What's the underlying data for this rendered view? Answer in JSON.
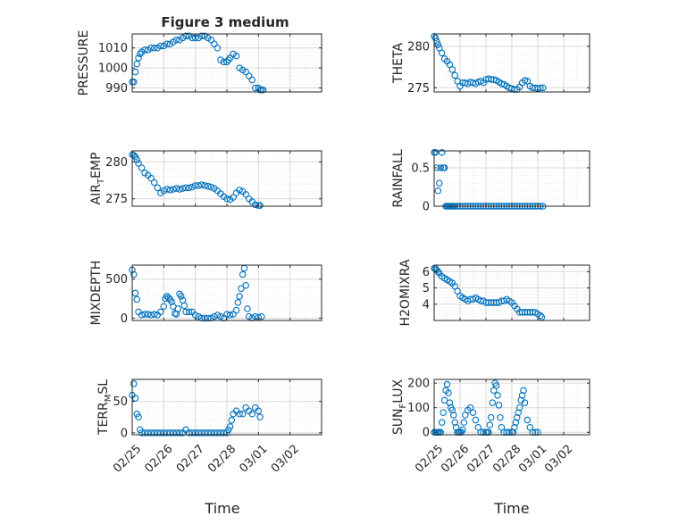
{
  "figure_title": "Figure 3 medium",
  "colors": {
    "marker": "#0072bd",
    "grid": "#d9d9d9",
    "axis": "#262626"
  },
  "chart_data": [
    {
      "type": "scatter",
      "id": "pressure",
      "ylabel": "PRESSURE",
      "ylim": [
        988,
        1017
      ],
      "yticks": [
        990,
        1000,
        1010
      ],
      "ytick_labels": [
        "990",
        "1000",
        "1010"
      ],
      "xlim": [
        0,
        6
      ],
      "show_xticklabels": false,
      "grid": true,
      "x": [
        0,
        0.05,
        0.1,
        0.15,
        0.2,
        0.25,
        0.3,
        0.4,
        0.5,
        0.6,
        0.7,
        0.8,
        0.9,
        1.0,
        1.1,
        1.2,
        1.3,
        1.4,
        1.5,
        1.6,
        1.7,
        1.8,
        1.9,
        2.0,
        2.1,
        2.2,
        2.3,
        2.4,
        2.5,
        2.6,
        2.7,
        2.8,
        2.9,
        3.0,
        3.05,
        3.1,
        3.2,
        3.3,
        3.4,
        3.5,
        3.6,
        3.7,
        3.8,
        3.9,
        4.0,
        4.05,
        4.1,
        4.15
      ],
      "y": [
        993,
        993,
        998,
        1002,
        1005,
        1007,
        1008,
        1009,
        1009,
        1010,
        1010,
        1010,
        1011,
        1011,
        1012,
        1012,
        1013,
        1014,
        1014,
        1015,
        1016,
        1016,
        1015,
        1015,
        1015,
        1016,
        1016,
        1015,
        1014,
        1012,
        1010,
        1004,
        1003,
        1003,
        1004,
        1005,
        1007,
        1006,
        1000,
        999,
        998,
        996,
        994,
        990,
        990,
        989,
        989,
        989
      ]
    },
    {
      "type": "scatter",
      "id": "theta",
      "ylabel": "THETA",
      "ylim": [
        274.5,
        281.5
      ],
      "yticks": [
        275,
        280
      ],
      "ytick_labels": [
        "275",
        "280"
      ],
      "xlim": [
        0,
        6
      ],
      "show_xticklabels": false,
      "grid": true,
      "x": [
        0,
        0.05,
        0.1,
        0.15,
        0.2,
        0.3,
        0.4,
        0.5,
        0.6,
        0.7,
        0.8,
        0.9,
        1.0,
        1.1,
        1.2,
        1.3,
        1.4,
        1.5,
        1.6,
        1.7,
        1.8,
        1.9,
        2.0,
        2.1,
        2.2,
        2.3,
        2.4,
        2.5,
        2.6,
        2.7,
        2.8,
        2.9,
        3.0,
        3.1,
        3.2,
        3.3,
        3.4,
        3.5,
        3.6,
        3.7,
        3.8,
        3.9,
        4.0,
        4.1,
        4.2
      ],
      "y": [
        281.2,
        281.0,
        280.6,
        280.2,
        279.8,
        279.2,
        278.5,
        278.2,
        277.8,
        277.2,
        276.5,
        275.8,
        275.2,
        275.6,
        275.6,
        275.5,
        275.7,
        275.6,
        275.5,
        275.7,
        275.8,
        275.6,
        276.0,
        276.1,
        276.0,
        276.0,
        275.9,
        275.7,
        275.5,
        275.4,
        275.2,
        275.0,
        274.9,
        274.8,
        274.8,
        275.1,
        275.6,
        275.9,
        275.8,
        275.2,
        275.0,
        275.0,
        274.9,
        275.0,
        275.0
      ]
    },
    {
      "type": "scatter",
      "id": "air_temp",
      "ylabel": "AIR",
      "ylabel_sub": "T",
      "ylabel_rest": "EMP",
      "ylim": [
        274,
        281.5
      ],
      "yticks": [
        275,
        280
      ],
      "ytick_labels": [
        "275",
        "280"
      ],
      "xlim": [
        0,
        6
      ],
      "show_xticklabels": false,
      "grid": true,
      "x": [
        0,
        0.05,
        0.1,
        0.15,
        0.2,
        0.3,
        0.4,
        0.5,
        0.6,
        0.7,
        0.8,
        0.9,
        1.0,
        1.1,
        1.2,
        1.3,
        1.4,
        1.5,
        1.6,
        1.7,
        1.8,
        1.9,
        2.0,
        2.1,
        2.2,
        2.3,
        2.4,
        2.5,
        2.6,
        2.7,
        2.8,
        2.9,
        3.0,
        3.1,
        3.2,
        3.3,
        3.4,
        3.5,
        3.6,
        3.7,
        3.8,
        3.9,
        4.0,
        4.05
      ],
      "y": [
        281.0,
        280.9,
        280.7,
        280.3,
        279.8,
        279.2,
        278.5,
        278.2,
        277.8,
        277.2,
        276.5,
        275.8,
        276.1,
        276.3,
        276.2,
        276.3,
        276.4,
        276.3,
        276.4,
        276.5,
        276.5,
        276.6,
        276.8,
        276.8,
        276.9,
        276.8,
        276.7,
        276.6,
        276.4,
        276.1,
        275.7,
        275.3,
        275.0,
        274.9,
        275.2,
        275.8,
        276.2,
        276.0,
        275.6,
        275.0,
        274.6,
        274.2,
        274.1,
        274.1
      ]
    },
    {
      "type": "scatter",
      "id": "rainfall",
      "ylabel": "RAINFALL",
      "ylim": [
        0,
        0.72
      ],
      "yticks": [
        0,
        0.5
      ],
      "ytick_labels": [
        "0",
        "0.5"
      ],
      "xlim": [
        0,
        6
      ],
      "show_xticklabels": false,
      "grid": true,
      "x": [
        0,
        0.05,
        0.1,
        0.15,
        0.2,
        0.25,
        0.3,
        0.35,
        0.4,
        0.45,
        0.5,
        0.55,
        0.6,
        0.65,
        0.7,
        0.75,
        0.8,
        0.9,
        1.0,
        1.1,
        1.2,
        1.3,
        1.4,
        1.5,
        1.6,
        1.7,
        1.8,
        1.9,
        2.0,
        2.1,
        2.2,
        2.3,
        2.4,
        2.5,
        2.6,
        2.7,
        2.8,
        2.9,
        3.0,
        3.1,
        3.2,
        3.3,
        3.4,
        3.5,
        3.6,
        3.7,
        3.8,
        3.9,
        4.0,
        4.1,
        4.2
      ],
      "y": [
        0.7,
        0.7,
        0.5,
        0.2,
        0.3,
        0.5,
        0.7,
        0.5,
        0.5,
        0,
        0,
        0,
        0,
        0,
        0,
        0,
        0,
        0,
        0,
        0,
        0,
        0,
        0,
        0,
        0,
        0,
        0,
        0,
        0,
        0,
        0,
        0,
        0,
        0,
        0,
        0,
        0,
        0,
        0,
        0,
        0,
        0,
        0,
        0,
        0,
        0,
        0,
        0,
        0,
        0,
        0
      ]
    },
    {
      "type": "scatter",
      "id": "mixdepth",
      "ylabel": "MIXDEPTH",
      "ylim": [
        -30,
        680
      ],
      "yticks": [
        0,
        500
      ],
      "ytick_labels": [
        "0",
        "500"
      ],
      "xlim": [
        0,
        6
      ],
      "show_xticklabels": false,
      "grid": true,
      "x": [
        0,
        0.05,
        0.1,
        0.15,
        0.2,
        0.3,
        0.4,
        0.5,
        0.6,
        0.7,
        0.8,
        0.9,
        1.0,
        1.05,
        1.1,
        1.15,
        1.2,
        1.25,
        1.3,
        1.35,
        1.4,
        1.45,
        1.5,
        1.55,
        1.6,
        1.65,
        1.7,
        1.8,
        1.9,
        2.0,
        2.1,
        2.2,
        2.3,
        2.4,
        2.5,
        2.6,
        2.7,
        2.8,
        2.9,
        3.0,
        3.1,
        3.2,
        3.3,
        3.35,
        3.4,
        3.45,
        3.5,
        3.55,
        3.6,
        3.65,
        3.7,
        3.8,
        3.9,
        4.0,
        4.1
      ],
      "y": [
        620,
        560,
        320,
        240,
        80,
        40,
        50,
        50,
        40,
        50,
        40,
        80,
        150,
        250,
        280,
        260,
        240,
        210,
        150,
        60,
        50,
        120,
        310,
        280,
        230,
        160,
        80,
        80,
        80,
        40,
        20,
        0,
        0,
        0,
        0,
        20,
        40,
        20,
        0,
        50,
        40,
        50,
        100,
        200,
        280,
        380,
        560,
        640,
        420,
        120,
        20,
        0,
        20,
        10,
        20
      ]
    },
    {
      "type": "scatter",
      "id": "h2omixra",
      "ylabel": "H2OMIXRA",
      "ylim": [
        3.0,
        6.4
      ],
      "yticks": [
        4,
        5,
        6
      ],
      "ytick_labels": [
        "4",
        "5",
        "6"
      ],
      "xlim": [
        0,
        6
      ],
      "show_xticklabels": false,
      "grid": true,
      "x": [
        0,
        0.05,
        0.1,
        0.15,
        0.2,
        0.3,
        0.4,
        0.5,
        0.6,
        0.7,
        0.8,
        0.9,
        1.0,
        1.1,
        1.2,
        1.3,
        1.4,
        1.5,
        1.6,
        1.7,
        1.8,
        1.9,
        2.0,
        2.1,
        2.2,
        2.3,
        2.4,
        2.5,
        2.6,
        2.7,
        2.8,
        2.9,
        3.0,
        3.1,
        3.2,
        3.3,
        3.4,
        3.5,
        3.6,
        3.7,
        3.8,
        3.9,
        4.0,
        4.1,
        4.15
      ],
      "y": [
        6.2,
        6.2,
        6.1,
        6.0,
        5.9,
        5.7,
        5.6,
        5.5,
        5.4,
        5.3,
        5.1,
        4.8,
        4.5,
        4.4,
        4.3,
        4.2,
        4.3,
        4.3,
        4.4,
        4.3,
        4.2,
        4.2,
        4.1,
        4.1,
        4.1,
        4.1,
        4.1,
        4.1,
        4.2,
        4.2,
        4.3,
        4.2,
        4.1,
        3.9,
        3.7,
        3.5,
        3.5,
        3.5,
        3.5,
        3.5,
        3.5,
        3.5,
        3.4,
        3.3,
        3.2
      ]
    },
    {
      "type": "scatter",
      "id": "terr_msl",
      "ylabel": "TERR",
      "ylabel_sub": "M",
      "ylabel_rest": "SL",
      "ylim": [
        -3,
        85
      ],
      "yticks": [
        0,
        50
      ],
      "ytick_labels": [
        "0",
        "50"
      ],
      "xlim": [
        0,
        6
      ],
      "show_xticklabels": true,
      "xticks": [
        0,
        1,
        2,
        3,
        4,
        5
      ],
      "xtick_labels": [
        "02/25",
        "02/26",
        "02/27",
        "02/28",
        "03/01",
        "03/02"
      ],
      "xlabel": "Time",
      "grid": true,
      "x": [
        0,
        0.05,
        0.1,
        0.15,
        0.2,
        0.25,
        0.3,
        0.4,
        0.5,
        0.6,
        0.7,
        0.8,
        0.9,
        1.0,
        1.1,
        1.2,
        1.3,
        1.4,
        1.5,
        1.6,
        1.7,
        1.8,
        1.9,
        2.0,
        2.1,
        2.2,
        2.3,
        2.4,
        2.5,
        2.6,
        2.7,
        2.8,
        2.9,
        3.0,
        3.05,
        3.1,
        3.15,
        3.2,
        3.3,
        3.4,
        3.5,
        3.6,
        3.7,
        3.8,
        3.9,
        4.0,
        4.05
      ],
      "y": [
        60,
        78,
        55,
        30,
        25,
        5,
        0,
        0,
        0,
        0,
        0,
        0,
        0,
        0,
        0,
        0,
        0,
        0,
        0,
        0,
        5,
        0,
        0,
        0,
        0,
        0,
        0,
        0,
        0,
        0,
        0,
        0,
        0,
        0,
        5,
        10,
        20,
        30,
        35,
        30,
        30,
        40,
        35,
        30,
        40,
        35,
        25
      ]
    },
    {
      "type": "scatter",
      "id": "sun_flux",
      "ylabel": "SUN",
      "ylabel_sub": "F",
      "ylabel_rest": "LUX",
      "ylim": [
        -10,
        215
      ],
      "yticks": [
        0,
        100,
        200
      ],
      "ytick_labels": [
        "0",
        "100",
        "200"
      ],
      "xlim": [
        0,
        6
      ],
      "show_xticklabels": true,
      "xticks": [
        0,
        1,
        2,
        3,
        4,
        5
      ],
      "xtick_labels": [
        "02/25",
        "02/26",
        "02/27",
        "02/28",
        "03/01",
        "03/02"
      ],
      "xlabel": "Time",
      "grid": true,
      "x": [
        0,
        0.05,
        0.1,
        0.15,
        0.2,
        0.25,
        0.3,
        0.35,
        0.4,
        0.45,
        0.5,
        0.55,
        0.6,
        0.65,
        0.7,
        0.75,
        0.8,
        0.85,
        0.9,
        0.95,
        1.0,
        1.05,
        1.1,
        1.15,
        1.2,
        1.3,
        1.4,
        1.5,
        1.6,
        1.7,
        1.8,
        1.9,
        2.0,
        2.05,
        2.1,
        2.15,
        2.2,
        2.25,
        2.3,
        2.35,
        2.4,
        2.45,
        2.5,
        2.55,
        2.6,
        2.7,
        2.8,
        2.9,
        3.0,
        3.05,
        3.1,
        3.15,
        3.2,
        3.25,
        3.3,
        3.35,
        3.4,
        3.45,
        3.5,
        3.6,
        3.7,
        3.8,
        3.9,
        4.0
      ],
      "y": [
        0,
        0,
        0,
        0,
        0,
        0,
        40,
        80,
        130,
        170,
        195,
        160,
        120,
        100,
        90,
        70,
        40,
        20,
        0,
        0,
        0,
        0,
        10,
        40,
        70,
        90,
        100,
        80,
        50,
        20,
        0,
        0,
        0,
        0,
        0,
        30,
        60,
        120,
        170,
        200,
        190,
        150,
        110,
        60,
        20,
        0,
        0,
        0,
        0,
        0,
        20,
        40,
        60,
        80,
        100,
        130,
        150,
        170,
        120,
        50,
        20,
        0,
        0,
        0
      ]
    }
  ]
}
